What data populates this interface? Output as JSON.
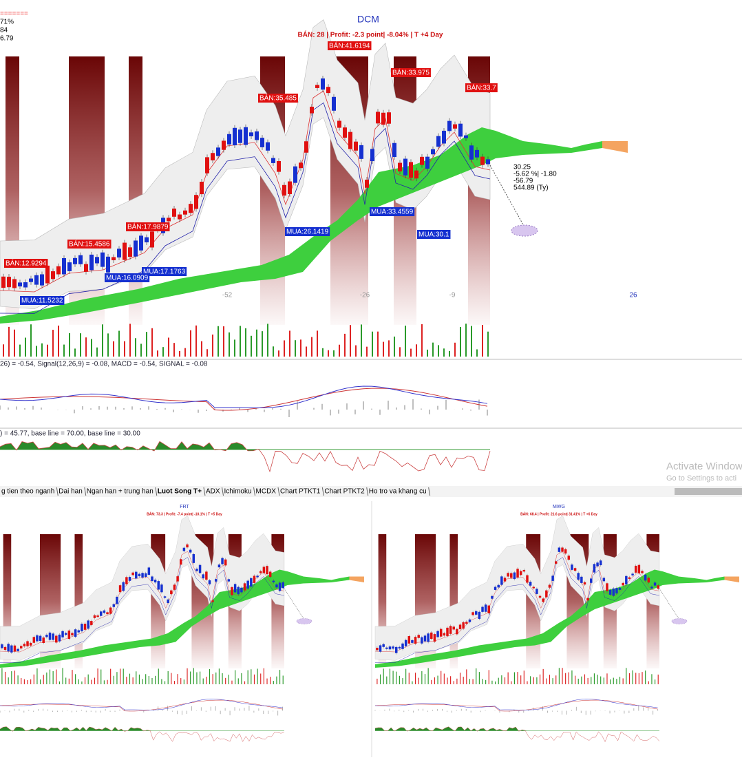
{
  "main": {
    "corner": [
      "=======",
      "71%",
      "84",
      "6.79"
    ],
    "title": "DCM",
    "subtitle": "BÁN:  28 | Profit: -2.3 point| -8.04% | T +4 Day",
    "signals": [
      "BÁN:41.6194",
      "BÁN:33.975",
      "BÁN:35.485",
      "BÁN:33.7",
      "BÁN:17.9879",
      "BÁN:15.4586",
      "BÁN:12.9294",
      "MUA:26.1419",
      "MUA:33.4559",
      "MUA:30.1",
      "MUA:17.1763",
      "MUA:16.0909",
      "MUA:11.5232"
    ],
    "info": [
      "30.25",
      "-5.62 %| -1.80",
      "-56.79",
      "544.89 (Ty)"
    ],
    "axis_labels": [
      "-52",
      "-26",
      "-9",
      "26"
    ],
    "macd_legend": "26) = -0.54, Signal(12,26,9) = -0.08, MACD = -0.54, SIGNAL = -0.08",
    "rsi_legend": ") = 45.77, base line = 70.00, base line = 30.00"
  },
  "tabs": [
    "g tien theo nganh",
    "Dai han",
    "Ngan han + trung han",
    "Luot Song T+",
    "ADX",
    "Ichimoku",
    "MCDX",
    "Chart PTKT1",
    "Chart PTKT2",
    "Ho tro va khang cu"
  ],
  "watermark": {
    "title": "Activate Window",
    "subtitle": "Go to Settings to acti"
  },
  "panels": [
    {
      "title": "FRT",
      "subtitle": "BÁN: 73.3 | Profit: -7.4 point| -10.1% | T +5 Day"
    },
    {
      "title": "MWG",
      "subtitle": "BÁN: 68.4 | Profit: 21.6 point| 31.41% | T +6 Day"
    }
  ]
}
